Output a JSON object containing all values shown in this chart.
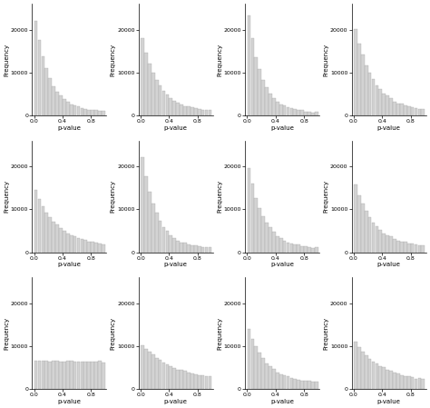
{
  "nrows": 3,
  "ncols": 4,
  "figsize": [
    4.74,
    4.49
  ],
  "dpi": 100,
  "background_color": "#ffffff",
  "xlabel": "p-value",
  "ylabel": "Frequency",
  "xticks": [
    0.0,
    0.4,
    0.8
  ],
  "yticks": [
    0,
    10000,
    20000
  ],
  "bar_color": "#d3d3d3",
  "bar_edge_color": "#999999",
  "bar_edge_width": 0.2,
  "n_bins": 20,
  "xlim": [
    -0.03,
    1.02
  ],
  "ylim": [
    0,
    26000
  ],
  "seed": 42,
  "panel_params": [
    {
      "peak": 24000,
      "decay": 5.0,
      "floor": 900
    },
    {
      "peak": 19000,
      "decay": 4.2,
      "floor": 900
    },
    {
      "peak": 26000,
      "decay": 5.5,
      "floor": 700
    },
    {
      "peak": 21000,
      "decay": 3.8,
      "floor": 1000
    },
    {
      "peak": 14000,
      "decay": 3.2,
      "floor": 1400
    },
    {
      "peak": 24000,
      "decay": 4.8,
      "floor": 900
    },
    {
      "peak": 21000,
      "decay": 4.5,
      "floor": 800
    },
    {
      "peak": 16000,
      "decay": 3.5,
      "floor": 1000
    },
    {
      "peak": 3500,
      "decay": 0.1,
      "floor": 3200
    },
    {
      "peak": 9000,
      "decay": 2.2,
      "floor": 1800
    },
    {
      "peak": 14000,
      "decay": 3.8,
      "floor": 1300
    },
    {
      "peak": 10000,
      "decay": 2.6,
      "floor": 1600
    }
  ]
}
